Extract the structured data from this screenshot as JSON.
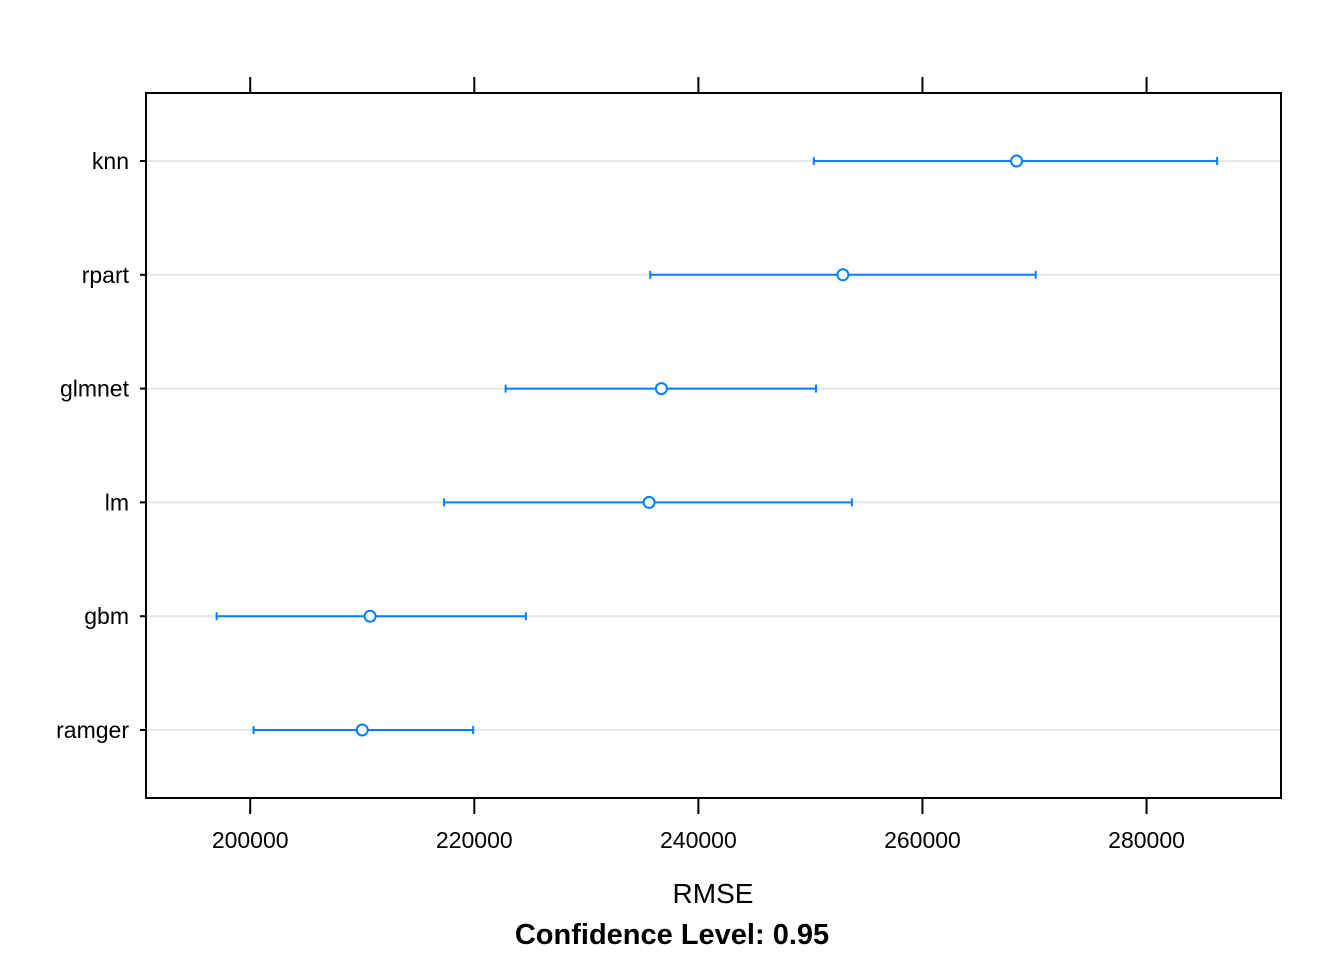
{
  "chart_data": {
    "type": "dotplot",
    "categories": [
      "ramger",
      "gbm",
      "lm",
      "glmnet",
      "rpart",
      "knn"
    ],
    "series": [
      {
        "estimate": [
          210000,
          210700,
          235600,
          236700,
          252900,
          268400
        ],
        "lower": [
          200300,
          197000,
          217300,
          222800,
          235700,
          250300
        ],
        "upper": [
          219900,
          224600,
          253700,
          250500,
          270100,
          286300
        ]
      }
    ],
    "xlim": [
      190700,
      292000
    ],
    "x_ticks": [
      200000,
      220000,
      240000,
      260000,
      280000
    ],
    "x_tick_labels": [
      "200000",
      "220000",
      "240000",
      "260000",
      "280000"
    ],
    "xlabel": "RMSE",
    "subtitle": "Confidence Level: 0.95",
    "grid": true,
    "colors": {
      "series": "#0080ff",
      "grid": "#e6e6e6",
      "axis": "#000000"
    }
  }
}
